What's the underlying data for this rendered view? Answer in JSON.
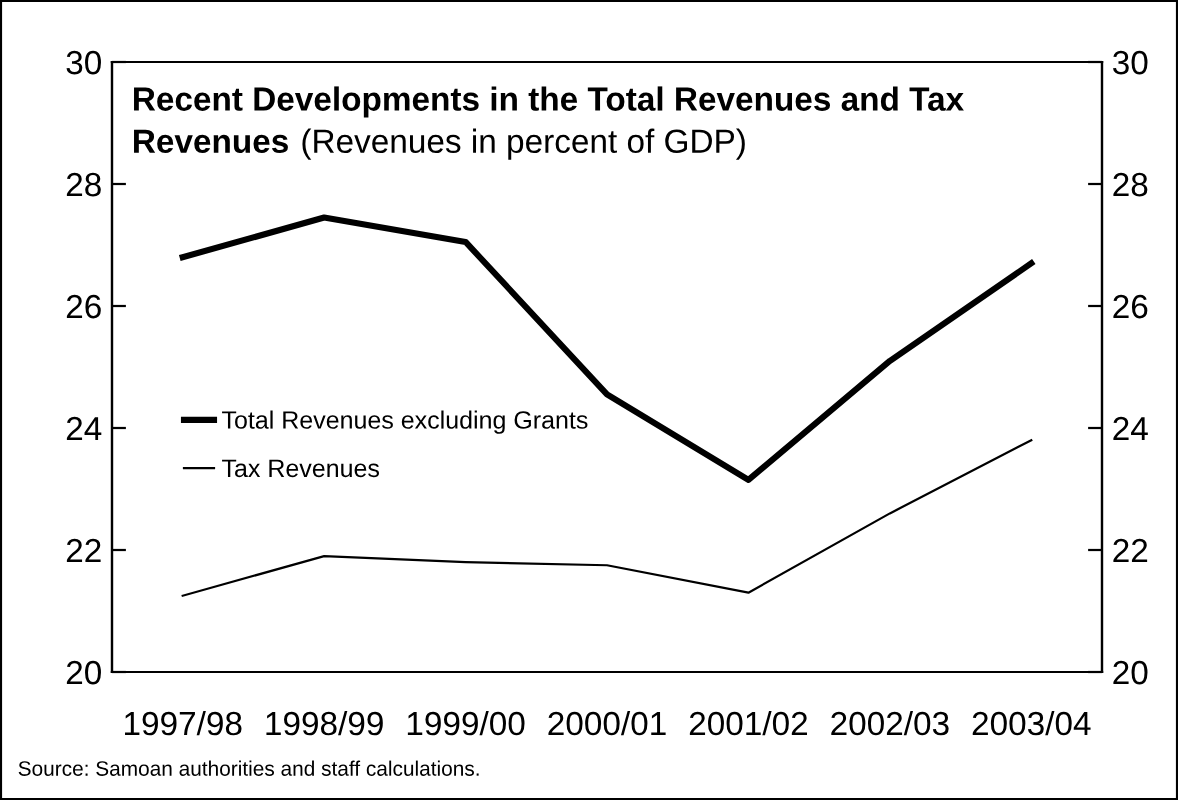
{
  "chart_data": {
    "type": "line",
    "title": "Recent Developments in the Total Revenues and Tax Revenues",
    "subtitle": "(Revenues in percent of GDP)",
    "categories": [
      "1997/98",
      "1998/99",
      "1999/00",
      "2000/01",
      "2001/02",
      "2002/03",
      "2003/04"
    ],
    "series": [
      {
        "name": "Total Revenues excluding Grants",
        "color": "#000000",
        "values": [
          26.8,
          27.45,
          27.05,
          24.55,
          23.15,
          25.1,
          26.7
        ]
      },
      {
        "name": "Tax Revenues",
        "color": "#000000",
        "values": [
          21.25,
          21.9,
          21.8,
          21.75,
          21.3,
          22.6,
          23.8
        ]
      }
    ],
    "ylim": [
      20,
      30
    ],
    "yticks": [
      20,
      22,
      24,
      26,
      28,
      30
    ],
    "y2lim": [
      20,
      30
    ],
    "y2ticks": [
      20,
      22,
      24,
      26,
      28,
      30
    ],
    "grid": false,
    "legend": "left",
    "marker": "none",
    "line_style": "solid",
    "annotations": [
      "Source: Samoan authorities and staff calculations."
    ]
  }
}
